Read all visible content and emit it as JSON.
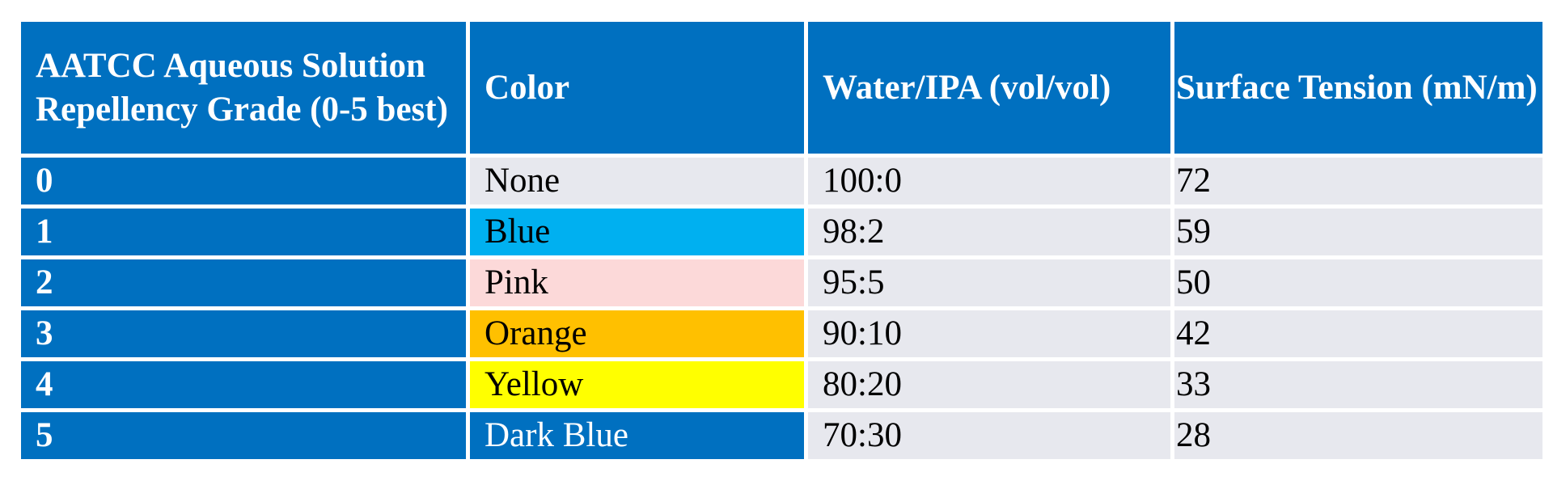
{
  "table": {
    "headers": [
      "AATCC Aqueous Solution Repellency Grade (0-5 best)",
      "Color",
      "Water/IPA (vol/vol)",
      "Surface Tension (mN/m)"
    ],
    "rows": [
      {
        "grade": "0",
        "color": "None",
        "ratio": "100:0",
        "tension": "72"
      },
      {
        "grade": "1",
        "color": "Blue",
        "ratio": "98:2",
        "tension": "59"
      },
      {
        "grade": "2",
        "color": "Pink",
        "ratio": "95:5",
        "tension": "50"
      },
      {
        "grade": "3",
        "color": "Orange",
        "ratio": "90:10",
        "tension": "42"
      },
      {
        "grade": "4",
        "color": "Yellow",
        "ratio": "80:20",
        "tension": "33"
      },
      {
        "grade": "5",
        "color": "Dark Blue",
        "ratio": "70:30",
        "tension": "28"
      }
    ]
  },
  "colors": {
    "header_bg": "#0070c0",
    "cell_bg": "#e7e8ee",
    "swatches": {
      "None": "#e7e8ee",
      "Blue": "#00b0f0",
      "Pink": "#fcd9d9",
      "Orange": "#ffc000",
      "Yellow": "#ffff00",
      "Dark Blue": "#0070c0"
    },
    "swatch_text": {
      "Dark Blue": "#ffffff"
    }
  }
}
